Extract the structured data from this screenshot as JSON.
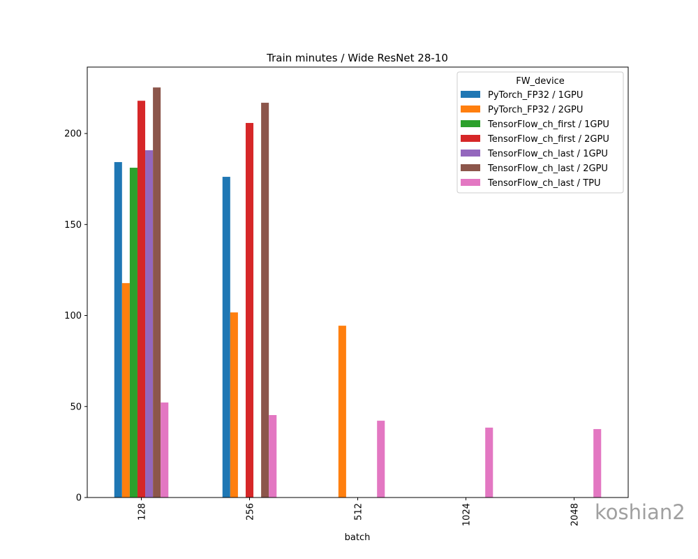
{
  "chart_data": {
    "type": "bar",
    "title": "Train minutes / Wide ResNet 28-10",
    "xlabel": "batch",
    "ylabel": "",
    "ylim": [
      0,
      236.5
    ],
    "yticks": [
      0,
      50,
      100,
      150,
      200
    ],
    "categories": [
      "128",
      "256",
      "512",
      "1024",
      "2048"
    ],
    "legend_title": "FW_device",
    "legend_position": "top-right",
    "grid": false,
    "series": [
      {
        "name": "PyTorch_FP32 / 1GPU",
        "color": "#1f77b4",
        "values": [
          184.3,
          176.2,
          null,
          null,
          null
        ]
      },
      {
        "name": "PyTorch_FP32 / 2GPU",
        "color": "#ff7f0e",
        "values": [
          117.8,
          101.7,
          94.4,
          null,
          null
        ]
      },
      {
        "name": "TensorFlow_ch_first / 1GPU",
        "color": "#2ca02c",
        "values": [
          181.2,
          null,
          null,
          null,
          null
        ]
      },
      {
        "name": "TensorFlow_ch_first / 2GPU",
        "color": "#d62728",
        "values": [
          218.0,
          205.8,
          null,
          null,
          null
        ]
      },
      {
        "name": "TensorFlow_ch_last / 1GPU",
        "color": "#9467bd",
        "values": [
          190.8,
          null,
          null,
          null,
          null
        ]
      },
      {
        "name": "TensorFlow_ch_last / 2GPU",
        "color": "#8c564b",
        "values": [
          225.3,
          216.9,
          null,
          null,
          null
        ]
      },
      {
        "name": "TensorFlow_ch_last / TPU",
        "color": "#e377c2",
        "values": [
          52.2,
          45.3,
          42.2,
          38.4,
          37.6
        ]
      }
    ]
  },
  "watermark": "koshian2"
}
